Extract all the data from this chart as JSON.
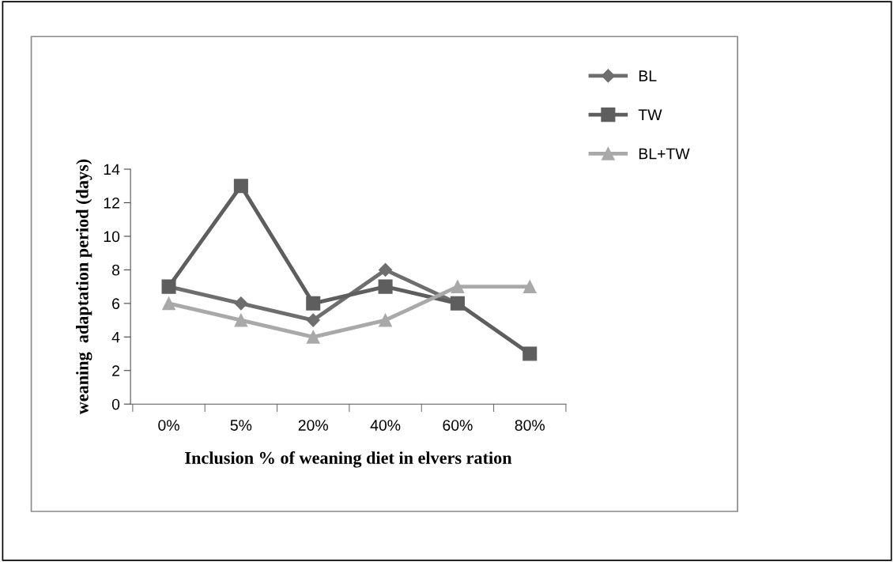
{
  "chart_data": {
    "type": "line",
    "xlabel": "Inclusion % of weaning diet in elvers ration",
    "ylabel": "weaning  adaptation period (days)",
    "categories": [
      "0%",
      "5%",
      "20%",
      "40%",
      "60%",
      "80%"
    ],
    "series": [
      {
        "name": "BL",
        "color": "#6e6e6e",
        "marker": "diamond",
        "values": [
          7,
          6,
          5,
          8,
          6,
          null
        ]
      },
      {
        "name": "TW",
        "color": "#5e5e5e",
        "marker": "square",
        "values": [
          7,
          13,
          6,
          7,
          6,
          3
        ]
      },
      {
        "name": "BL+TW",
        "color": "#a9a9a9",
        "marker": "triangle",
        "values": [
          6,
          5,
          4,
          5,
          7,
          7
        ]
      }
    ],
    "ylim": [
      0,
      14
    ],
    "yticks": [
      0,
      2,
      4,
      6,
      8,
      10,
      12,
      14
    ],
    "grid": false,
    "legend": "top right"
  }
}
